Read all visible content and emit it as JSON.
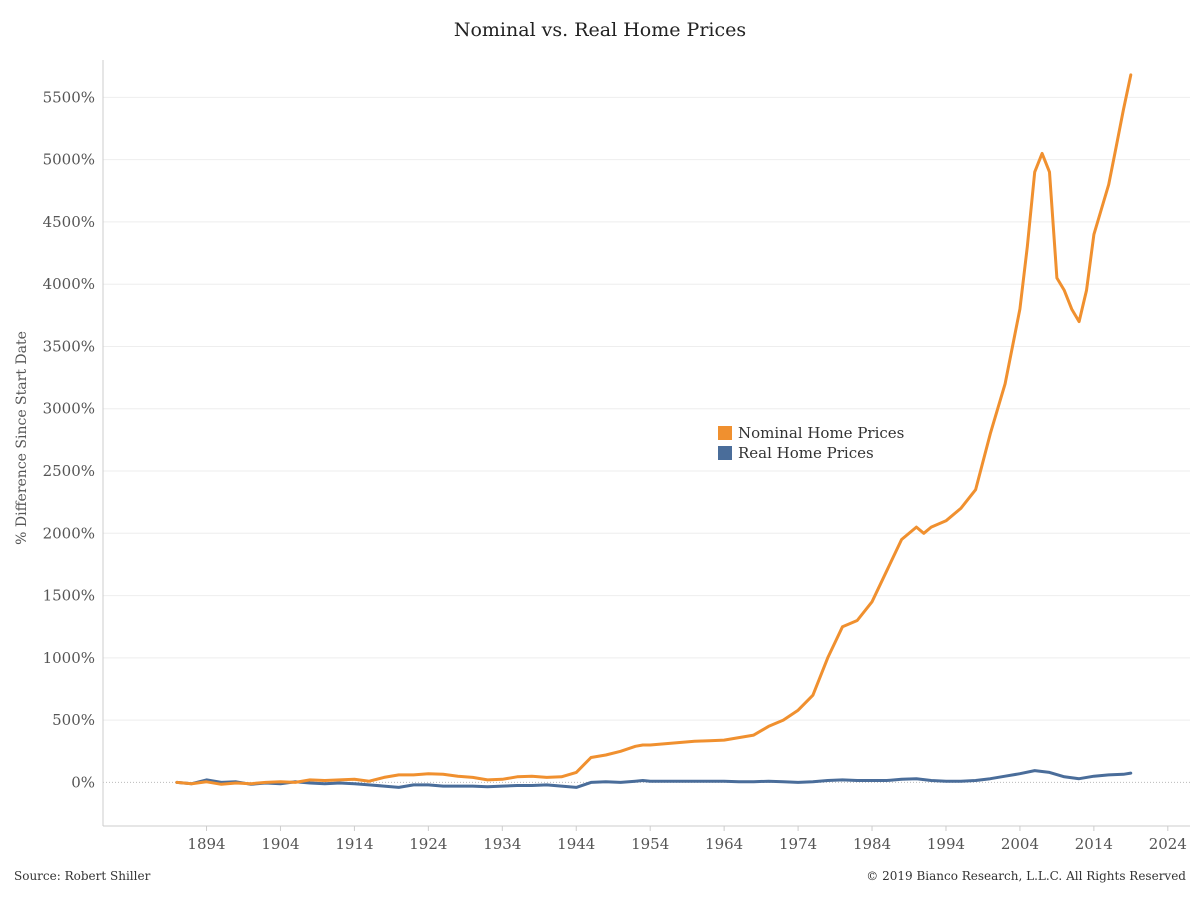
{
  "colors": {
    "nominal": "#f0902f",
    "real": "#4a6d9a",
    "grid": "#eeeeee",
    "axis": "#cccccc",
    "zero": "#bbbbbb"
  },
  "footer": {
    "source": "Source: Robert Shiller",
    "copyright": "© 2019 Bianco Research, L.L.C. All Rights Reserved"
  },
  "chart_data": {
    "type": "line",
    "title": "Nominal vs. Real Home Prices",
    "xlabel": "",
    "ylabel": "% Difference Since Start Date",
    "xlim": [
      1880,
      2027
    ],
    "ylim": [
      -350,
      5800
    ],
    "x_ticks": [
      1894,
      1904,
      1914,
      1924,
      1934,
      1944,
      1954,
      1964,
      1974,
      1984,
      1994,
      2004,
      2014,
      2024
    ],
    "y_ticks": [
      0,
      500,
      1000,
      1500,
      2000,
      2500,
      3000,
      3500,
      4000,
      4500,
      5000,
      5500
    ],
    "y_tick_suffix": "%",
    "grid": true,
    "legend_position": "center",
    "series": [
      {
        "name": "Nominal Home Prices",
        "color": "#f0902f",
        "x": [
          1890,
          1892,
          1894,
          1896,
          1898,
          1900,
          1902,
          1904,
          1906,
          1908,
          1910,
          1912,
          1914,
          1916,
          1918,
          1920,
          1922,
          1924,
          1926,
          1928,
          1930,
          1932,
          1934,
          1936,
          1938,
          1940,
          1942,
          1944,
          1946,
          1948,
          1950,
          1952,
          1953,
          1954,
          1956,
          1958,
          1960,
          1962,
          1964,
          1966,
          1968,
          1970,
          1972,
          1974,
          1976,
          1978,
          1980,
          1982,
          1984,
          1986,
          1988,
          1990,
          1991,
          1992,
          1994,
          1996,
          1998,
          2000,
          2002,
          2004,
          2005,
          2006,
          2007,
          2008,
          2009,
          2010,
          2011,
          2012,
          2013,
          2014,
          2015,
          2016,
          2017,
          2018,
          2019
        ],
        "values": [
          0,
          -10,
          5,
          -15,
          -5,
          -10,
          0,
          5,
          0,
          20,
          15,
          20,
          25,
          10,
          40,
          60,
          60,
          70,
          65,
          50,
          40,
          20,
          25,
          45,
          50,
          40,
          45,
          80,
          200,
          220,
          250,
          290,
          300,
          300,
          310,
          320,
          330,
          335,
          340,
          360,
          380,
          450,
          500,
          580,
          700,
          1000,
          1250,
          1300,
          1450,
          1700,
          1950,
          2050,
          2000,
          2050,
          2100,
          2200,
          2350,
          2800,
          3200,
          3800,
          4300,
          4900,
          5050,
          4900,
          4050,
          3950,
          3800,
          3700,
          3950,
          4400,
          4600,
          4800,
          5100,
          5400,
          5680
        ]
      },
      {
        "name": "Real Home Prices",
        "color": "#4a6d9a",
        "x": [
          1890,
          1892,
          1894,
          1896,
          1898,
          1900,
          1902,
          1904,
          1906,
          1908,
          1910,
          1912,
          1914,
          1916,
          1918,
          1920,
          1922,
          1924,
          1926,
          1928,
          1930,
          1932,
          1934,
          1936,
          1938,
          1940,
          1942,
          1944,
          1946,
          1948,
          1950,
          1952,
          1953,
          1954,
          1956,
          1958,
          1960,
          1962,
          1964,
          1966,
          1968,
          1970,
          1972,
          1974,
          1976,
          1978,
          1980,
          1982,
          1984,
          1986,
          1988,
          1990,
          1992,
          1994,
          1996,
          1998,
          2000,
          2002,
          2004,
          2006,
          2008,
          2010,
          2012,
          2014,
          2016,
          2018,
          2019
        ],
        "values": [
          0,
          -10,
          20,
          0,
          5,
          -15,
          -5,
          -10,
          5,
          -5,
          -10,
          -5,
          -10,
          -20,
          -30,
          -40,
          -20,
          -20,
          -30,
          -30,
          -30,
          -35,
          -30,
          -25,
          -25,
          -20,
          -30,
          -40,
          0,
          5,
          0,
          10,
          15,
          10,
          10,
          10,
          10,
          10,
          10,
          5,
          5,
          10,
          5,
          0,
          5,
          15,
          20,
          15,
          15,
          15,
          25,
          30,
          15,
          10,
          10,
          15,
          30,
          50,
          70,
          95,
          80,
          45,
          30,
          50,
          60,
          65,
          75
        ]
      }
    ]
  }
}
